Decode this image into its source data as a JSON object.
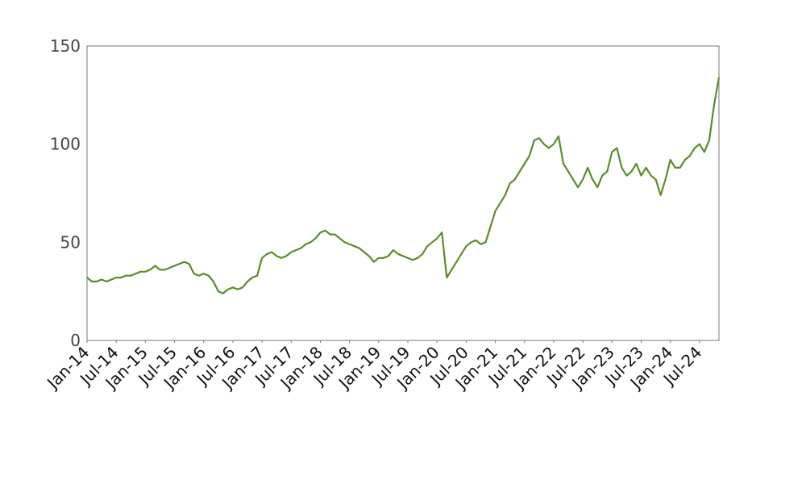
{
  "chart_data": {
    "type": "line",
    "x": [
      "2014-01",
      "2014-02",
      "2014-03",
      "2014-04",
      "2014-05",
      "2014-06",
      "2014-07",
      "2014-08",
      "2014-09",
      "2014-10",
      "2014-11",
      "2014-12",
      "2015-01",
      "2015-02",
      "2015-03",
      "2015-04",
      "2015-05",
      "2015-06",
      "2015-07",
      "2015-08",
      "2015-09",
      "2015-10",
      "2015-11",
      "2015-12",
      "2016-01",
      "2016-02",
      "2016-03",
      "2016-04",
      "2016-05",
      "2016-06",
      "2016-07",
      "2016-08",
      "2016-09",
      "2016-10",
      "2016-11",
      "2016-12",
      "2017-01",
      "2017-02",
      "2017-03",
      "2017-04",
      "2017-05",
      "2017-06",
      "2017-07",
      "2017-08",
      "2017-09",
      "2017-10",
      "2017-11",
      "2017-12",
      "2018-01",
      "2018-02",
      "2018-03",
      "2018-04",
      "2018-05",
      "2018-06",
      "2018-07",
      "2018-08",
      "2018-09",
      "2018-10",
      "2018-11",
      "2018-12",
      "2019-01",
      "2019-02",
      "2019-03",
      "2019-04",
      "2019-05",
      "2019-06",
      "2019-07",
      "2019-08",
      "2019-09",
      "2019-10",
      "2019-11",
      "2019-12",
      "2020-01",
      "2020-02",
      "2020-03",
      "2020-04",
      "2020-05",
      "2020-06",
      "2020-07",
      "2020-08",
      "2020-09",
      "2020-10",
      "2020-11",
      "2020-12",
      "2021-01",
      "2021-02",
      "2021-03",
      "2021-04",
      "2021-05",
      "2021-06",
      "2021-07",
      "2021-08",
      "2021-09",
      "2021-10",
      "2021-11",
      "2021-12",
      "2022-01",
      "2022-02",
      "2022-03",
      "2022-04",
      "2022-05",
      "2022-06",
      "2022-07",
      "2022-08",
      "2022-09",
      "2022-10",
      "2022-11",
      "2022-12",
      "2023-01",
      "2023-02",
      "2023-03",
      "2023-04",
      "2023-05",
      "2023-06",
      "2023-07",
      "2023-08",
      "2023-09",
      "2023-10",
      "2023-11",
      "2023-12",
      "2024-01",
      "2024-02",
      "2024-03",
      "2024-04",
      "2024-05",
      "2024-06",
      "2024-07",
      "2024-08",
      "2024-09",
      "2024-10",
      "2024-11"
    ],
    "series": [
      {
        "color": "#5b8c2a",
        "values": [
          32,
          30,
          30,
          31,
          30,
          31,
          32,
          32,
          33,
          33,
          34,
          35,
          35,
          36,
          38,
          36,
          36,
          37,
          38,
          39,
          40,
          39,
          34,
          33,
          34,
          33,
          30,
          25,
          24,
          26,
          27,
          26,
          27,
          30,
          32,
          33,
          42,
          44,
          45,
          43,
          42,
          43,
          45,
          46,
          47,
          49,
          50,
          52,
          55,
          56,
          54,
          54,
          52,
          50,
          49,
          48,
          47,
          45,
          43,
          40,
          42,
          42,
          43,
          46,
          44,
          43,
          42,
          41,
          42,
          44,
          48,
          50,
          52,
          55,
          32,
          36,
          40,
          44,
          48,
          50,
          51,
          49,
          50,
          58,
          66,
          70,
          74,
          80,
          82,
          86,
          90,
          94,
          102,
          103,
          100,
          98,
          100,
          104,
          90,
          86,
          82,
          78,
          82,
          88,
          82,
          78,
          84,
          86,
          96,
          98,
          88,
          84,
          86,
          90,
          84,
          88,
          84,
          82,
          74,
          82,
          92,
          88,
          88,
          92,
          94,
          98,
          100,
          96,
          102,
          120,
          134
        ]
      }
    ],
    "xlim": [
      "2014-01",
      "2024-11"
    ],
    "xticks": [
      {
        "value": "2014-01",
        "label": "Jan-14"
      },
      {
        "value": "2014-07",
        "label": "Jul-14"
      },
      {
        "value": "2015-01",
        "label": "Jan-15"
      },
      {
        "value": "2015-07",
        "label": "Jul-15"
      },
      {
        "value": "2016-01",
        "label": "Jan-16"
      },
      {
        "value": "2016-07",
        "label": "Jul-16"
      },
      {
        "value": "2017-01",
        "label": "Jan-17"
      },
      {
        "value": "2017-07",
        "label": "Jul-17"
      },
      {
        "value": "2018-01",
        "label": "Jan-18"
      },
      {
        "value": "2018-07",
        "label": "Jul-18"
      },
      {
        "value": "2019-01",
        "label": "Jan-19"
      },
      {
        "value": "2019-07",
        "label": "Jul-19"
      },
      {
        "value": "2020-01",
        "label": "Jan-20"
      },
      {
        "value": "2020-07",
        "label": "Jul-20"
      },
      {
        "value": "2021-01",
        "label": "Jan-21"
      },
      {
        "value": "2021-07",
        "label": "Jul-21"
      },
      {
        "value": "2022-01",
        "label": "Jan-22"
      },
      {
        "value": "2022-07",
        "label": "Jul-22"
      },
      {
        "value": "2023-01",
        "label": "Jan-23"
      },
      {
        "value": "2023-07",
        "label": "Jul-23"
      },
      {
        "value": "2024-01",
        "label": "Jan-24"
      },
      {
        "value": "2024-07",
        "label": "Jul-24"
      }
    ],
    "ylim": [
      0,
      150
    ],
    "yticks": [
      0,
      50,
      100,
      150
    ],
    "grid": false
  }
}
